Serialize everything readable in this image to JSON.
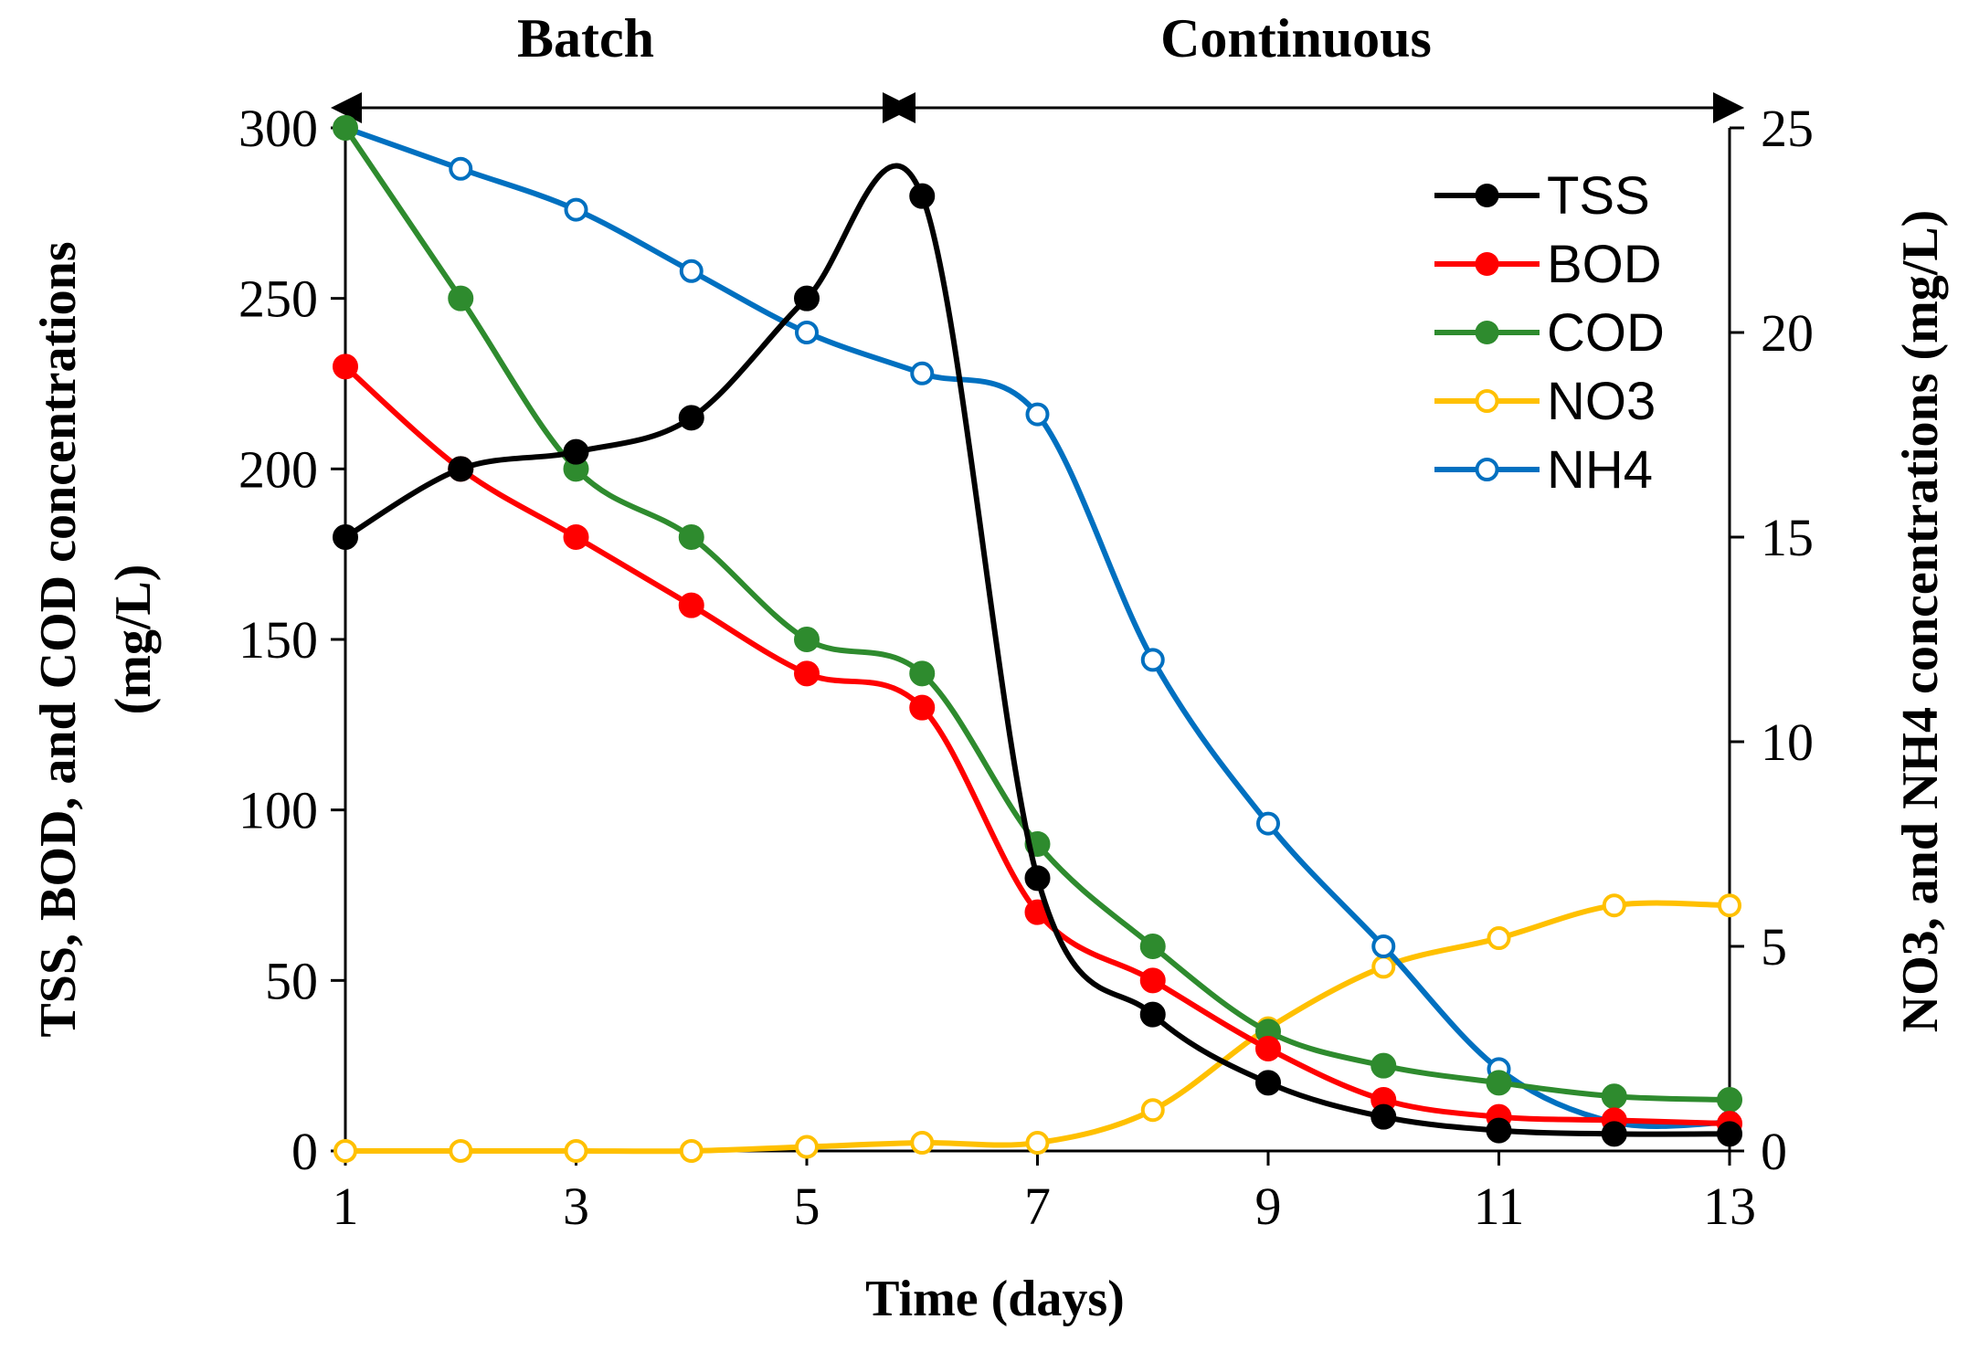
{
  "chart_data": {
    "type": "line",
    "xlabel": "Time (days)",
    "ylabel_left_line1": "TSS, BOD, and COD concentrations",
    "ylabel_left_line2": "(mg/L)",
    "ylabel_right": "NO3, and NH4 concentrations (mg/L)",
    "x_ticks": [
      "1",
      "3",
      "5",
      "7",
      "9",
      "11",
      "13"
    ],
    "x_tick_values": [
      1,
      3,
      5,
      7,
      9,
      11,
      13
    ],
    "xlim": [
      1,
      13
    ],
    "y_left_ticks": [
      "0",
      "50",
      "100",
      "150",
      "200",
      "250",
      "300"
    ],
    "y_left_tick_values": [
      0,
      50,
      100,
      150,
      200,
      250,
      300
    ],
    "ylim_left": [
      0,
      300
    ],
    "y_right_ticks": [
      "0",
      "5",
      "10",
      "15",
      "20",
      "25"
    ],
    "y_right_tick_values": [
      0,
      5,
      10,
      15,
      20,
      25
    ],
    "ylim_right": [
      0,
      25
    ],
    "phases": [
      {
        "label": "Batch",
        "start": 1,
        "end": 5.8
      },
      {
        "label": "Continuous",
        "start": 5.8,
        "end": 13
      }
    ],
    "x": [
      1,
      2,
      3,
      4,
      5,
      6,
      7,
      8,
      9,
      10,
      11,
      12,
      13
    ],
    "series": [
      {
        "name": "TSS",
        "axis": "left",
        "color": "#000000",
        "marker": "filled",
        "values": [
          180,
          200,
          205,
          215,
          250,
          280,
          80,
          40,
          20,
          10,
          6,
          5,
          5
        ]
      },
      {
        "name": "BOD",
        "axis": "left",
        "color": "#ff0000",
        "marker": "filled",
        "values": [
          230,
          200,
          180,
          160,
          140,
          130,
          70,
          50,
          30,
          15,
          10,
          9,
          8
        ]
      },
      {
        "name": "COD",
        "axis": "left",
        "color": "#2e8b2e",
        "marker": "filled",
        "values": [
          300,
          250,
          200,
          180,
          150,
          140,
          90,
          60,
          35,
          25,
          20,
          16,
          15
        ]
      },
      {
        "name": "NO3",
        "axis": "right",
        "color": "#ffc000",
        "marker": "open",
        "values": [
          0,
          0,
          0,
          0,
          0.1,
          0.2,
          0.2,
          1.0,
          3.0,
          4.5,
          5.2,
          6.0,
          6.0
        ]
      },
      {
        "name": "NH4",
        "axis": "right",
        "color": "#0070c0",
        "marker": "open",
        "values": [
          25,
          24,
          23,
          21.5,
          20,
          19,
          18,
          12,
          8,
          5,
          2,
          0.7,
          0.7
        ]
      }
    ],
    "legend_position": "top-right"
  }
}
